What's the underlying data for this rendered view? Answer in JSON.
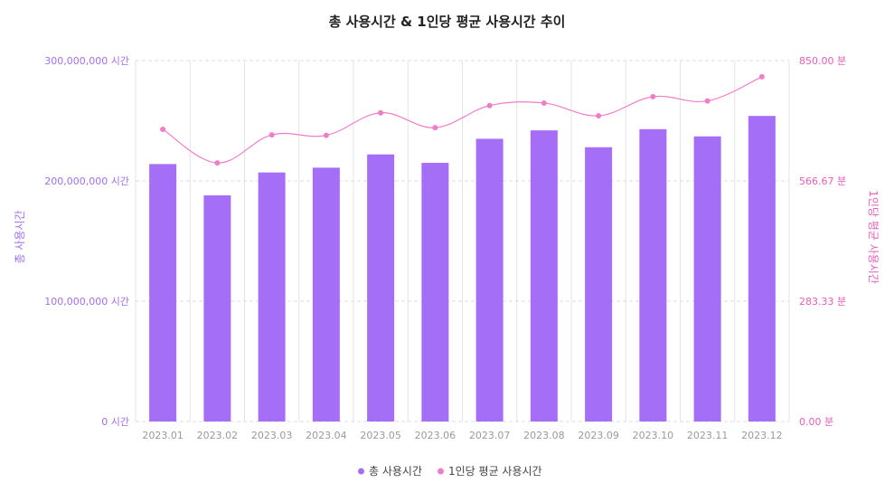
{
  "chart_data": {
    "type": "bar",
    "title": "총 사용시간 & 1인당 평균 사용시간 추이",
    "categories": [
      "2023.01",
      "2023.02",
      "2023.03",
      "2023.04",
      "2023.05",
      "2023.06",
      "2023.07",
      "2023.08",
      "2023.09",
      "2023.10",
      "2023.11",
      "2023.12"
    ],
    "series": [
      {
        "name": "총 사용시간",
        "type": "bar",
        "axis": "left",
        "color": "#a56ef6",
        "values": [
          214000000,
          188000000,
          207000000,
          211000000,
          222000000,
          215000000,
          235000000,
          242000000,
          228000000,
          243000000,
          237000000,
          254000000
        ]
      },
      {
        "name": "1인당 평균 사용시간",
        "type": "line",
        "axis": "right",
        "color": "#ef7ec8",
        "values": [
          688,
          609,
          675,
          674,
          727,
          692,
          744,
          750,
          720,
          765,
          755,
          812
        ]
      }
    ],
    "ylabel_left": "총 사용시간",
    "ylabel_right": "1인당 평균 사용시간",
    "ylim_left": [
      0,
      300000000
    ],
    "ylim_right": [
      0,
      850
    ],
    "yticks_left": [
      "0 시간",
      "100,000,000 시간",
      "200,000,000 시간",
      "300,000,000 시간"
    ],
    "yticks_right": [
      "0.00 분",
      "283.33 분",
      "566.67 분",
      "850.00 분"
    ],
    "grid": true,
    "legend": "bottom-center"
  }
}
